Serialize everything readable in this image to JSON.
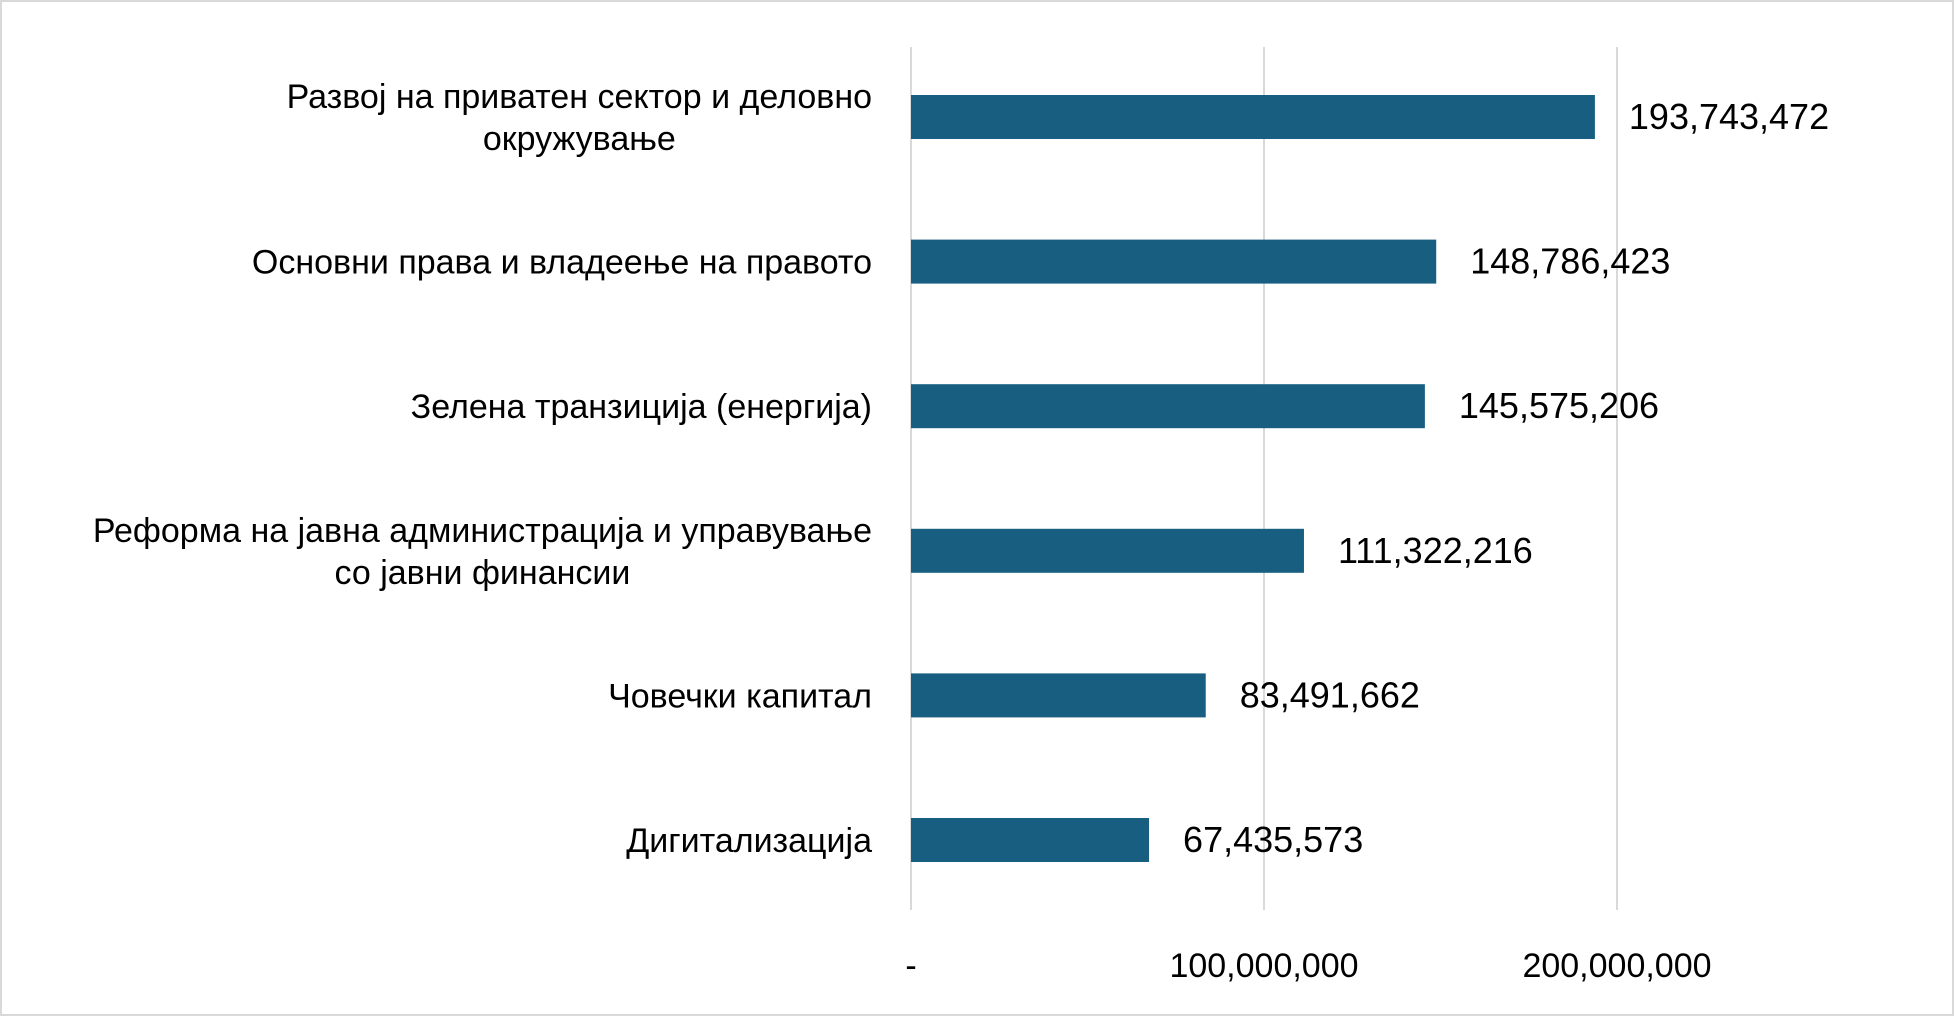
{
  "chart_data": {
    "type": "bar",
    "orientation": "horizontal",
    "title": "",
    "xlabel": "",
    "ylabel": "",
    "categories": [
      [
        "Развој на приватен сектор и деловно",
        "окружување"
      ],
      [
        "Основни права и владеење на правото"
      ],
      [
        "Зелена транзиција (енергија)"
      ],
      [
        "Реформа на јавна администрација и управување",
        "со јавни финансии"
      ],
      [
        "Човечки капитал"
      ],
      [
        "Дигитализација"
      ]
    ],
    "values": [
      193743472,
      148786423,
      145575206,
      111322216,
      83491662,
      67435573
    ],
    "value_labels": [
      "193,743,472",
      "148,786,423",
      "145,575,206",
      "111,322,216",
      "83,491,662",
      "67,435,573"
    ],
    "xlim": [
      0,
      250000000
    ],
    "xticks": [
      0,
      100000000,
      200000000
    ],
    "xtick_labels": [
      "-",
      "100,000,000",
      "200,000,000"
    ],
    "grid": "vertical",
    "legend": "none",
    "bar_color": "#175e81",
    "grid_color": "#d9d9d9"
  }
}
